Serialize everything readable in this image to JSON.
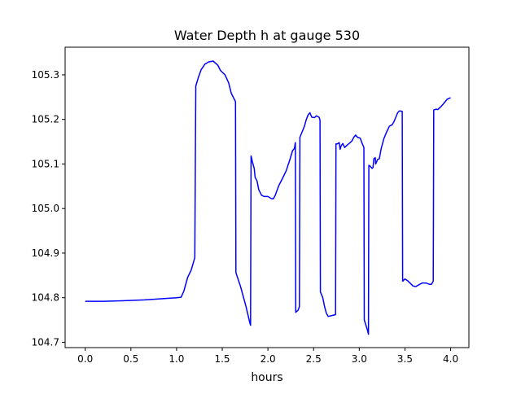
{
  "chart_data": {
    "type": "line",
    "title": "Water Depth h at gauge 530",
    "xlabel": "hours",
    "ylabel": "",
    "xlim": [
      -0.22,
      4.2
    ],
    "ylim": [
      104.688,
      105.362
    ],
    "xticks": [
      0.0,
      0.5,
      1.0,
      1.5,
      2.0,
      2.5,
      3.0,
      3.5,
      4.0
    ],
    "xtick_labels": [
      "0.0",
      "0.5",
      "1.0",
      "1.5",
      "2.0",
      "2.5",
      "3.0",
      "3.5",
      "4.0"
    ],
    "yticks": [
      104.7,
      104.8,
      104.9,
      105.0,
      105.1,
      105.2,
      105.3
    ],
    "ytick_labels": [
      "104.7",
      "104.8",
      "104.9",
      "105.0",
      "105.1",
      "105.2",
      "105.3"
    ],
    "grid": false,
    "series": [
      {
        "color": "#0000ff",
        "points": [
          [
            0.0,
            104.792
          ],
          [
            0.2,
            104.792
          ],
          [
            0.4,
            104.793
          ],
          [
            0.65,
            104.795
          ],
          [
            0.8,
            104.797
          ],
          [
            1.0,
            104.8
          ],
          [
            1.05,
            104.801
          ],
          [
            1.08,
            104.815
          ],
          [
            1.12,
            104.845
          ],
          [
            1.16,
            104.862
          ],
          [
            1.2,
            104.89
          ],
          [
            1.21,
            105.275
          ],
          [
            1.24,
            105.295
          ],
          [
            1.27,
            105.312
          ],
          [
            1.31,
            105.324
          ],
          [
            1.35,
            105.329
          ],
          [
            1.4,
            105.331
          ],
          [
            1.45,
            105.322
          ],
          [
            1.48,
            105.31
          ],
          [
            1.53,
            105.3
          ],
          [
            1.57,
            105.282
          ],
          [
            1.6,
            105.258
          ],
          [
            1.645,
            105.24
          ],
          [
            1.65,
            104.856
          ],
          [
            1.7,
            104.825
          ],
          [
            1.76,
            104.78
          ],
          [
            1.8,
            104.745
          ],
          [
            1.81,
            104.738
          ],
          [
            1.815,
            105.118
          ],
          [
            1.83,
            105.105
          ],
          [
            1.85,
            105.09
          ],
          [
            1.86,
            105.07
          ],
          [
            1.88,
            105.062
          ],
          [
            1.9,
            105.042
          ],
          [
            1.93,
            105.03
          ],
          [
            1.96,
            105.027
          ],
          [
            2.0,
            105.027
          ],
          [
            2.04,
            105.022
          ],
          [
            2.06,
            105.022
          ],
          [
            2.08,
            105.03
          ],
          [
            2.12,
            105.052
          ],
          [
            2.16,
            105.068
          ],
          [
            2.2,
            105.085
          ],
          [
            2.24,
            105.11
          ],
          [
            2.27,
            105.13
          ],
          [
            2.29,
            105.135
          ],
          [
            2.3,
            105.148
          ],
          [
            2.305,
            104.767
          ],
          [
            2.33,
            104.772
          ],
          [
            2.345,
            104.78
          ],
          [
            2.35,
            105.16
          ],
          [
            2.38,
            105.175
          ],
          [
            2.4,
            105.185
          ],
          [
            2.42,
            105.2
          ],
          [
            2.44,
            105.21
          ],
          [
            2.46,
            105.215
          ],
          [
            2.48,
            105.205
          ],
          [
            2.51,
            105.204
          ],
          [
            2.53,
            105.208
          ],
          [
            2.56,
            105.205
          ],
          [
            2.57,
            105.198
          ],
          [
            2.575,
            104.813
          ],
          [
            2.6,
            104.8
          ],
          [
            2.62,
            104.78
          ],
          [
            2.64,
            104.765
          ],
          [
            2.66,
            104.758
          ],
          [
            2.7,
            104.76
          ],
          [
            2.74,
            104.762
          ],
          [
            2.745,
            105.145
          ],
          [
            2.76,
            105.145
          ],
          [
            2.78,
            105.148
          ],
          [
            2.79,
            105.133
          ],
          [
            2.8,
            105.14
          ],
          [
            2.82,
            105.146
          ],
          [
            2.84,
            105.137
          ],
          [
            2.87,
            105.143
          ],
          [
            2.9,
            105.148
          ],
          [
            2.92,
            105.152
          ],
          [
            2.94,
            105.16
          ],
          [
            2.96,
            105.165
          ],
          [
            2.98,
            105.16
          ],
          [
            3.01,
            105.158
          ],
          [
            3.03,
            105.147
          ],
          [
            3.05,
            105.137
          ],
          [
            3.055,
            104.75
          ],
          [
            3.09,
            104.727
          ],
          [
            3.1,
            104.718
          ],
          [
            3.105,
            105.097
          ],
          [
            3.12,
            105.095
          ],
          [
            3.14,
            105.09
          ],
          [
            3.15,
            105.092
          ],
          [
            3.16,
            105.112
          ],
          [
            3.175,
            105.114
          ],
          [
            3.18,
            105.1
          ],
          [
            3.2,
            105.11
          ],
          [
            3.22,
            105.112
          ],
          [
            3.24,
            105.135
          ],
          [
            3.27,
            105.157
          ],
          [
            3.3,
            105.172
          ],
          [
            3.33,
            105.185
          ],
          [
            3.36,
            105.188
          ],
          [
            3.38,
            105.195
          ],
          [
            3.4,
            105.205
          ],
          [
            3.42,
            105.215
          ],
          [
            3.44,
            105.219
          ],
          [
            3.47,
            105.218
          ],
          [
            3.475,
            104.837
          ],
          [
            3.5,
            104.842
          ],
          [
            3.53,
            104.838
          ],
          [
            3.56,
            104.832
          ],
          [
            3.59,
            104.826
          ],
          [
            3.62,
            104.825
          ],
          [
            3.66,
            104.83
          ],
          [
            3.69,
            104.833
          ],
          [
            3.73,
            104.833
          ],
          [
            3.77,
            104.83
          ],
          [
            3.79,
            104.83
          ],
          [
            3.81,
            104.837
          ],
          [
            3.815,
            105.221
          ],
          [
            3.84,
            105.223
          ],
          [
            3.86,
            105.222
          ],
          [
            3.9,
            105.23
          ],
          [
            3.93,
            105.237
          ],
          [
            3.96,
            105.245
          ],
          [
            3.99,
            105.248
          ],
          [
            4.0,
            105.248
          ]
        ]
      }
    ]
  }
}
